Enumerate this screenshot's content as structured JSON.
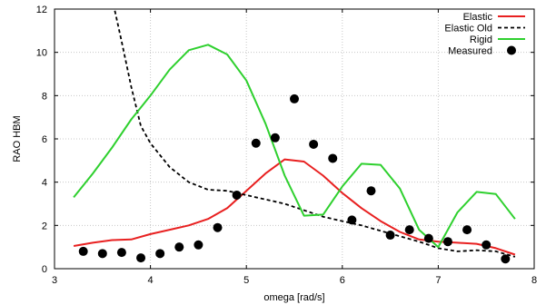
{
  "chart_data": {
    "type": "line",
    "xlabel": "omega [rad/s]",
    "ylabel": "RAO HBM",
    "xlim": [
      3,
      8
    ],
    "ylim": [
      0,
      12
    ],
    "x_ticks": [
      "3",
      "4",
      "5",
      "6",
      "7",
      "8"
    ],
    "y_ticks": [
      "0",
      "2",
      "4",
      "6",
      "8",
      "10",
      "12"
    ],
    "grid": true,
    "legend_position": "top-right",
    "series": [
      {
        "name": "Elastic",
        "style": "solid",
        "color": "#e82020",
        "points": [
          [
            3.2,
            1.05
          ],
          [
            3.4,
            1.2
          ],
          [
            3.6,
            1.32
          ],
          [
            3.8,
            1.35
          ],
          [
            4.0,
            1.6
          ],
          [
            4.2,
            1.8
          ],
          [
            4.4,
            2.0
          ],
          [
            4.6,
            2.3
          ],
          [
            4.8,
            2.8
          ],
          [
            5.0,
            3.6
          ],
          [
            5.2,
            4.4
          ],
          [
            5.4,
            5.05
          ],
          [
            5.6,
            4.95
          ],
          [
            5.8,
            4.3
          ],
          [
            6.0,
            3.5
          ],
          [
            6.2,
            2.8
          ],
          [
            6.4,
            2.2
          ],
          [
            6.6,
            1.7
          ],
          [
            6.8,
            1.35
          ],
          [
            7.0,
            1.25
          ],
          [
            7.2,
            1.2
          ],
          [
            7.4,
            1.15
          ],
          [
            7.6,
            0.95
          ],
          [
            7.8,
            0.65
          ]
        ]
      },
      {
        "name": "Elastic Old",
        "style": "dashed",
        "color": "#000000",
        "points": [
          [
            3.6,
            12.5
          ],
          [
            3.7,
            10.5
          ],
          [
            3.8,
            8.4
          ],
          [
            3.9,
            6.6
          ],
          [
            4.0,
            5.8
          ],
          [
            4.2,
            4.7
          ],
          [
            4.4,
            4.0
          ],
          [
            4.6,
            3.65
          ],
          [
            4.8,
            3.6
          ],
          [
            5.0,
            3.4
          ],
          [
            5.2,
            3.2
          ],
          [
            5.4,
            3.0
          ],
          [
            5.6,
            2.7
          ],
          [
            5.8,
            2.4
          ],
          [
            6.0,
            2.2
          ],
          [
            6.2,
            2.0
          ],
          [
            6.4,
            1.75
          ],
          [
            6.6,
            1.5
          ],
          [
            6.8,
            1.25
          ],
          [
            7.0,
            0.95
          ],
          [
            7.2,
            0.8
          ],
          [
            7.4,
            0.85
          ],
          [
            7.6,
            0.8
          ],
          [
            7.8,
            0.55
          ]
        ]
      },
      {
        "name": "Rigid",
        "style": "solid",
        "color": "#2ed02e",
        "points": [
          [
            3.2,
            3.3
          ],
          [
            3.4,
            4.4
          ],
          [
            3.6,
            5.6
          ],
          [
            3.8,
            6.9
          ],
          [
            4.0,
            8.0
          ],
          [
            4.2,
            9.2
          ],
          [
            4.4,
            10.1
          ],
          [
            4.6,
            10.35
          ],
          [
            4.8,
            9.9
          ],
          [
            5.0,
            8.7
          ],
          [
            5.2,
            6.7
          ],
          [
            5.4,
            4.3
          ],
          [
            5.6,
            2.45
          ],
          [
            5.8,
            2.5
          ],
          [
            6.0,
            3.8
          ],
          [
            6.2,
            4.85
          ],
          [
            6.4,
            4.8
          ],
          [
            6.6,
            3.7
          ],
          [
            6.8,
            1.8
          ],
          [
            7.0,
            1.0
          ],
          [
            7.2,
            2.6
          ],
          [
            7.4,
            3.55
          ],
          [
            7.6,
            3.45
          ],
          [
            7.8,
            2.3
          ]
        ]
      },
      {
        "name": "Measured",
        "style": "markers",
        "color": "#000000",
        "points": [
          [
            3.3,
            0.8
          ],
          [
            3.5,
            0.7
          ],
          [
            3.7,
            0.75
          ],
          [
            3.9,
            0.5
          ],
          [
            4.1,
            0.7
          ],
          [
            4.3,
            1.0
          ],
          [
            4.5,
            1.1
          ],
          [
            4.7,
            1.9
          ],
          [
            4.9,
            3.4
          ],
          [
            5.1,
            5.8
          ],
          [
            5.3,
            6.05
          ],
          [
            5.5,
            7.85
          ],
          [
            5.7,
            5.75
          ],
          [
            5.9,
            5.1
          ],
          [
            6.1,
            2.25
          ],
          [
            6.3,
            3.6
          ],
          [
            6.5,
            1.55
          ],
          [
            6.7,
            1.8
          ],
          [
            6.9,
            1.4
          ],
          [
            7.1,
            1.25
          ],
          [
            7.3,
            1.8
          ],
          [
            7.5,
            1.1
          ],
          [
            7.7,
            0.45
          ]
        ]
      }
    ]
  }
}
